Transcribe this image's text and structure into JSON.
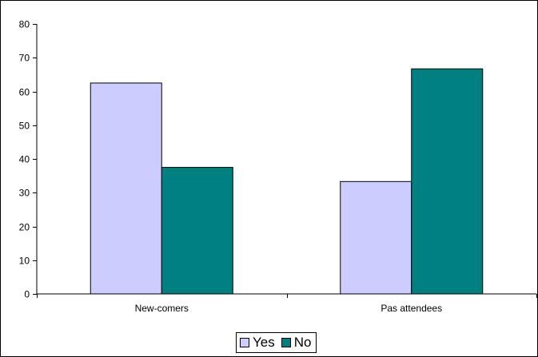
{
  "chart_data": {
    "type": "bar",
    "title": "",
    "xlabel": "",
    "ylabel": "",
    "categories": [
      "New-comers",
      "Pas attendees"
    ],
    "series": [
      {
        "name": "Yes",
        "color": "#ccccff",
        "values": [
          62.5,
          33.3
        ]
      },
      {
        "name": "No",
        "color": "#008080",
        "values": [
          37.5,
          66.7
        ]
      }
    ],
    "ylim": [
      0,
      80
    ],
    "yticks": [
      0,
      10,
      20,
      30,
      40,
      50,
      60,
      70,
      80
    ],
    "grid": false,
    "legend_position": "bottom"
  }
}
